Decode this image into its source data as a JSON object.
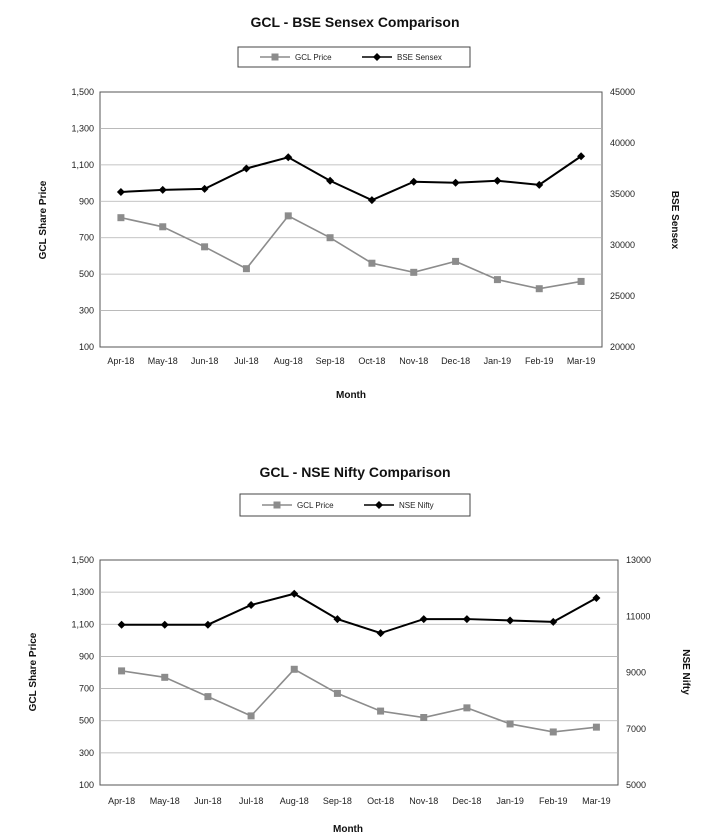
{
  "chart_data": [
    {
      "type": "line",
      "title": "GCL - BSE Sensex Comparison",
      "xlabel": "Month",
      "ylabel": "GCL Share Price",
      "y2label": "BSE Sensex",
      "categories": [
        "Apr-18",
        "May-18",
        "Jun-18",
        "Jul-18",
        "Aug-18",
        "Sep-18",
        "Oct-18",
        "Nov-18",
        "Dec-18",
        "Jan-19",
        "Feb-19",
        "Mar-19"
      ],
      "ylim": [
        100,
        1500
      ],
      "yticks": [
        100,
        300,
        500,
        700,
        900,
        1100,
        1300,
        1500
      ],
      "ytick_labels": [
        "100",
        "300",
        "500",
        "700",
        "900",
        "1,100",
        "1,300",
        "1,500"
      ],
      "y2lim": [
        20000,
        45000
      ],
      "y2ticks": [
        20000,
        25000,
        30000,
        35000,
        40000,
        45000
      ],
      "y2tick_labels": [
        "20000",
        "25000",
        "30000",
        "35000",
        "40000",
        "45000"
      ],
      "grid": true,
      "legend_position": "top",
      "series": [
        {
          "name": "GCL Price",
          "axis": "left",
          "marker": "square",
          "color": "#8c8c8c",
          "values": [
            810,
            760,
            650,
            530,
            820,
            700,
            560,
            510,
            570,
            470,
            420,
            460
          ]
        },
        {
          "name": "BSE Sensex",
          "axis": "right",
          "marker": "diamond",
          "color": "#000000",
          "values": [
            35200,
            35400,
            35500,
            37500,
            38600,
            36300,
            34400,
            36200,
            36100,
            36300,
            35900,
            38700
          ]
        }
      ]
    },
    {
      "type": "line",
      "title": "GCL - NSE Nifty Comparison",
      "xlabel": "Month",
      "ylabel": "GCL Share Price",
      "y2label": "NSE Nifty",
      "categories": [
        "Apr-18",
        "May-18",
        "Jun-18",
        "Jul-18",
        "Aug-18",
        "Sep-18",
        "Oct-18",
        "Nov-18",
        "Dec-18",
        "Jan-19",
        "Feb-19",
        "Mar-19"
      ],
      "ylim": [
        100,
        1500
      ],
      "yticks": [
        100,
        300,
        500,
        700,
        900,
        1100,
        1300,
        1500
      ],
      "ytick_labels": [
        "100",
        "300",
        "500",
        "700",
        "900",
        "1,100",
        "1,300",
        "1,500"
      ],
      "y2lim": [
        5000,
        13000
      ],
      "y2ticks": [
        5000,
        7000,
        9000,
        11000,
        13000
      ],
      "y2tick_labels": [
        "5000",
        "7000",
        "9000",
        "11000",
        "13000"
      ],
      "grid": true,
      "legend_position": "top",
      "series": [
        {
          "name": "GCL Price",
          "axis": "left",
          "marker": "square",
          "color": "#8c8c8c",
          "values": [
            810,
            770,
            650,
            530,
            820,
            670,
            560,
            520,
            580,
            480,
            430,
            460
          ]
        },
        {
          "name": "NSE Nifty",
          "axis": "right",
          "marker": "diamond",
          "color": "#000000",
          "values": [
            10700,
            10700,
            10700,
            11400,
            11800,
            10900,
            10400,
            10900,
            10900,
            10850,
            10800,
            11650
          ]
        }
      ]
    }
  ]
}
